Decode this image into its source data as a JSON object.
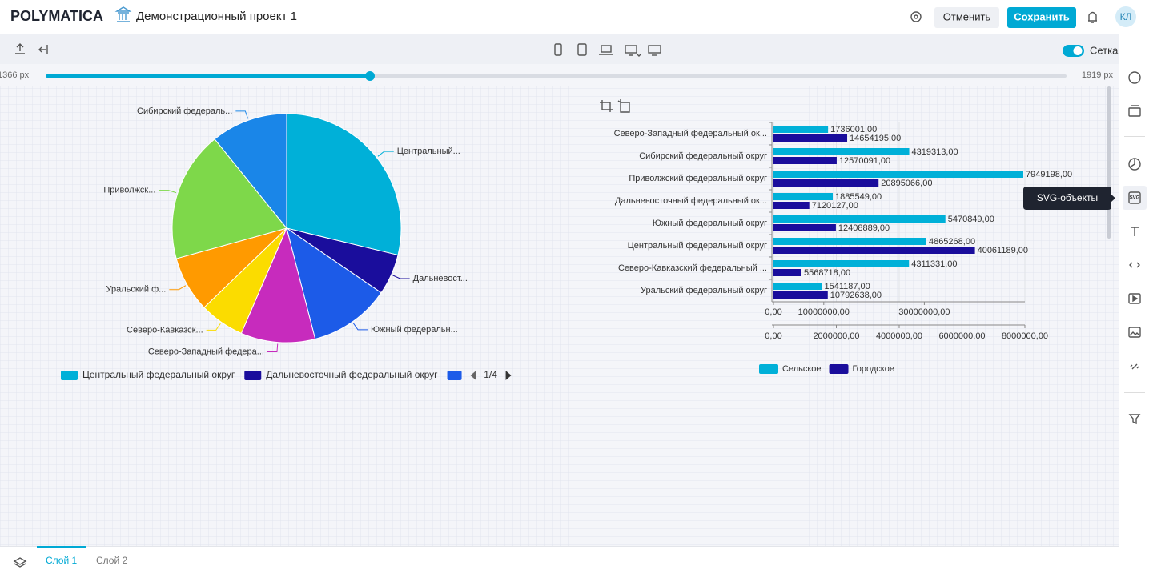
{
  "header": {
    "logo": "POLYMATICA",
    "project_title": "Демонстрационный проект 1",
    "cancel": "Отменить",
    "save": "Сохранить",
    "avatar": "КЛ"
  },
  "toolbar": {
    "grid_toggle": "Сетка"
  },
  "slider": {
    "min_label": "1366 px",
    "max_label": "1919 px"
  },
  "tooltip": "SVG-объекты",
  "layers": [
    "Слой 1",
    "Слой 2"
  ],
  "chart_data": [
    {
      "type": "pie",
      "categories": [
        "Центральный...",
        "Дальневост...",
        "Южный федеральн...",
        "Северо-Западный федера...",
        "Северо-Кавказск...",
        "Уральский ф...",
        "Приволжск...",
        "Сибирский федераль..."
      ],
      "values": [
        44926457,
        9005676,
        17879738,
        16390196,
        9880049,
        12333825,
        28844264,
        16889404
      ],
      "colors": [
        "#00b0d8",
        "#1a0d9c",
        "#1c5be8",
        "#c72bbd",
        "#fbdc00",
        "#ff9a00",
        "#7ed84a",
        "#1a86e8"
      ],
      "legend": {
        "items": [
          "Центральный федеральный округ",
          "Дальневосточный федеральный округ"
        ],
        "page": "1/4"
      }
    },
    {
      "type": "bar",
      "orientation": "horizontal",
      "categories": [
        "Северо-Западный федеральный ок...",
        "Сибирский федеральный округ",
        "Приволжский федеральный округ",
        "Дальневосточный федеральный ок...",
        "Южный федеральный округ",
        "Центральный федеральный округ",
        "Северо-Кавказский федеральный ...",
        "Уральский федеральный округ"
      ],
      "series": [
        {
          "name": "Сельское",
          "color": "#00b0d8",
          "values": [
            1736001,
            4319313,
            7949198,
            1885549,
            5470849,
            4865268,
            4311331,
            1541187
          ],
          "value_labels": [
            "1736001,00",
            "4319313,00",
            "7949198,00",
            "1885549,00",
            "5470849,00",
            "4865268,00",
            "4311331,00",
            "1541187,00"
          ]
        },
        {
          "name": "Городское",
          "color": "#1a0d9c",
          "axis": "x2",
          "values": [
            14654195,
            12570091,
            20895066,
            7120127,
            12408889,
            40061189,
            5568718,
            10792638
          ],
          "value_labels": [
            "14654195,00",
            "12570091,00",
            "20895066,00",
            "7120127,00",
            "12408889,00",
            "40061189,00",
            "5568718,00",
            "10792638,00"
          ]
        }
      ],
      "xlim": [
        0,
        8000000
      ],
      "xticks": [
        {
          "value": 0,
          "label": "0,00"
        },
        {
          "value": 2000000,
          "label": "2000000,00"
        },
        {
          "value": 4000000,
          "label": "4000000,00"
        },
        {
          "value": 6000000,
          "label": "6000000,00"
        },
        {
          "value": 8000000,
          "label": "8000000,00"
        }
      ],
      "x2lim": [
        0,
        50000000
      ],
      "x2ticks": [
        {
          "value": 0,
          "label": "0,00"
        },
        {
          "value": 10000000,
          "label": "10000000,00"
        },
        {
          "value": 30000000,
          "label": "30000000,00"
        }
      ],
      "grid": true
    }
  ]
}
